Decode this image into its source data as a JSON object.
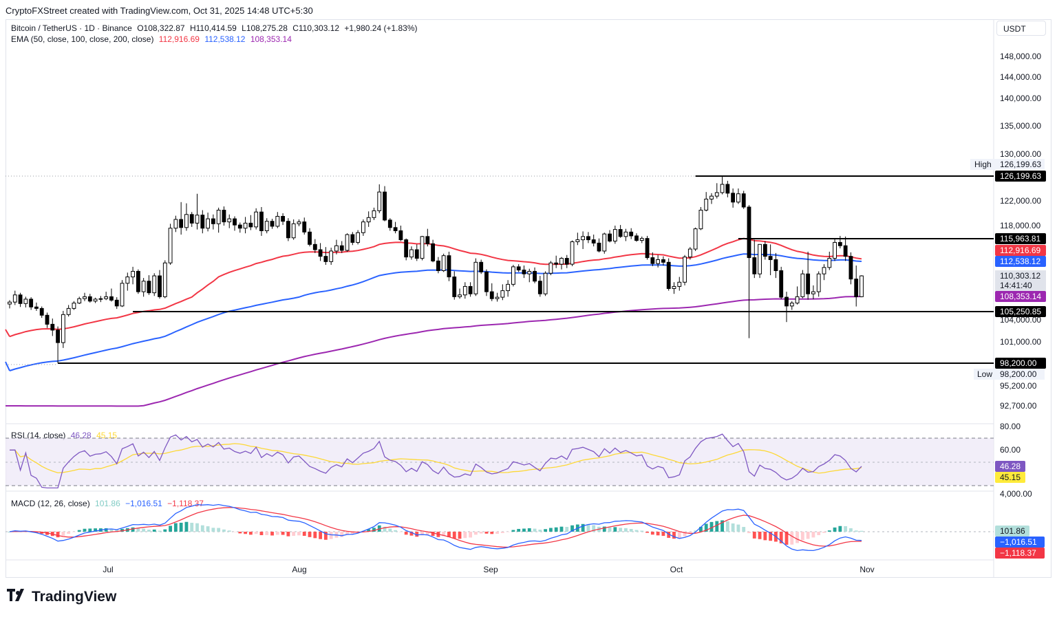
{
  "header": {
    "caption": "CryptoFXStreet created with TradingView.com, Oct 31, 2025 14:48 UTC+5:30"
  },
  "legend": {
    "symbol": "Bitcoin / TetherUS · 1D · Binance",
    "open": "O108,322.87",
    "high": "H110,414.59",
    "low": "L108,275.28",
    "close": "C110,303.12",
    "change": "+1,980.24 (+1.83%)",
    "ema_label": "EMA (50, close, 100, close, 200, close)",
    "ema50": "112,916.69",
    "ema100": "112,538.12",
    "ema200": "108,353.14",
    "rsi_label": "RSI (14, close)",
    "rsi_value": "46.28",
    "rsi_ma": "45.15",
    "macd_label": "MACD (12, 26, close)",
    "macd_hist": "101.86",
    "macd_line": "−1,016.51",
    "macd_signal": "−1,118.37"
  },
  "currency": "USDT",
  "colors": {
    "up": "#ffffff",
    "down": "#000000",
    "ema50": "#f23645",
    "ema100": "#2962ff",
    "ema200": "#9c27b0",
    "rsi": "#7e57c2",
    "rsi_ma": "#fdd835",
    "macd": "#2962ff",
    "signal": "#f23645",
    "hist_up_strong": "#26a69a",
    "hist_up_weak": "#b2dfdb",
    "hist_down_strong": "#ff5252",
    "hist_down_weak": "#ffcdd2"
  },
  "price_axis": {
    "labels": [
      "148,000.00",
      "144,000.00",
      "140,000.00",
      "135,000.00",
      "130,000.00",
      "122,000.00",
      "118,000.00",
      "104,000.00",
      "101,000.00",
      "95,200.00",
      "92,700.00"
    ],
    "high_label": "High",
    "high_value": "126,199.63",
    "low_label": "Low",
    "low_value": "98,200.00",
    "tag_high": "126,199.63",
    "tag_resist": "115,963.81",
    "tag_ema50": "112,916.69",
    "tag_ema100": "112,538.12",
    "tag_close": "110,303.12",
    "tag_countdown": "14:41:40",
    "tag_ema200": "108,353.14",
    "tag_support": "105,250.85",
    "tag_low": "98,200.00"
  },
  "rsi_axis": {
    "labels": [
      "80.00",
      "60.00"
    ],
    "tag_rsi": "46.28",
    "tag_ma": "45.15"
  },
  "macd_axis": {
    "labels": [
      "4,000.00"
    ],
    "tag_hist": "101.86",
    "tag_macd": "−1,016.51",
    "tag_signal": "−1,118.37"
  },
  "time_axis": [
    "Jul",
    "Aug",
    "Sep",
    "Oct",
    "Nov"
  ],
  "footer": {
    "brand": "TradingView"
  },
  "chart_data": {
    "type": "candlestick",
    "symbol": "Bitcoin / TetherUS",
    "interval": "1D",
    "exchange": "Binance",
    "levels": {
      "high": 126199.63,
      "resistance": 115963.81,
      "support": 105250.85,
      "low": 98200.0
    },
    "candles": [
      [
        106800,
        107600,
        105900,
        107200
      ],
      [
        107200,
        108900,
        106600,
        108500
      ],
      [
        108500,
        108700,
        106200,
        106900
      ],
      [
        106900,
        108300,
        106100,
        107800
      ],
      [
        107800,
        108200,
        105600,
        106200
      ],
      [
        106200,
        107100,
        105400,
        105900
      ],
      [
        105900,
        106300,
        104300,
        104700
      ],
      [
        104700,
        105100,
        102900,
        103400
      ],
      [
        103400,
        104200,
        101800,
        102600
      ],
      [
        102600,
        103100,
        98200,
        100900
      ],
      [
        100900,
        105400,
        100200,
        104800
      ],
      [
        104800,
        106600,
        104500,
        105900
      ],
      [
        105900,
        107400,
        105600,
        107000
      ],
      [
        107000,
        108300,
        106800,
        107900
      ],
      [
        107900,
        108700,
        107400,
        108300
      ],
      [
        108300,
        108600,
        107100,
        107400
      ],
      [
        107400,
        108100,
        107000,
        107800
      ],
      [
        107800,
        108400,
        107200,
        107900
      ],
      [
        107900,
        108800,
        107600,
        108300
      ],
      [
        108300,
        109100,
        107300,
        107600
      ],
      [
        107600,
        108200,
        105800,
        106400
      ],
      [
        106400,
        109900,
        106200,
        109600
      ],
      [
        109600,
        110800,
        108900,
        110200
      ],
      [
        110200,
        111700,
        109500,
        111000
      ],
      [
        111000,
        111300,
        108600,
        108800
      ],
      [
        108800,
        110100,
        108300,
        109800
      ],
      [
        109800,
        110400,
        108500,
        108700
      ],
      [
        108700,
        110700,
        108400,
        110300
      ],
      [
        110300,
        111200,
        107900,
        108300
      ],
      [
        108300,
        112700,
        108000,
        112300
      ],
      [
        112300,
        118300,
        112000,
        117600
      ],
      [
        117600,
        119600,
        117000,
        119000
      ],
      [
        119000,
        121800,
        116600,
        117700
      ],
      [
        117700,
        121600,
        117200,
        119800
      ],
      [
        119800,
        120200,
        117800,
        118400
      ],
      [
        118400,
        123200,
        117400,
        119700
      ],
      [
        119700,
        120500,
        116800,
        117600
      ],
      [
        117600,
        120100,
        117100,
        119100
      ],
      [
        119100,
        119800,
        117400,
        118300
      ],
      [
        118300,
        120900,
        116900,
        120500
      ],
      [
        120500,
        121100,
        118000,
        118600
      ],
      [
        118600,
        119800,
        117600,
        119100
      ],
      [
        119100,
        119500,
        117200,
        118100
      ],
      [
        118100,
        118500,
        116900,
        117600
      ],
      [
        117600,
        119400,
        116800,
        118400
      ],
      [
        118400,
        119700,
        117300,
        117800
      ],
      [
        117800,
        120800,
        117400,
        120200
      ],
      [
        120200,
        121000,
        116400,
        117200
      ],
      [
        117200,
        119200,
        116800,
        118700
      ],
      [
        118700,
        119100,
        117500,
        117900
      ],
      [
        117900,
        120200,
        117600,
        119500
      ],
      [
        119500,
        120000,
        118100,
        118700
      ],
      [
        118700,
        119200,
        115600,
        116100
      ],
      [
        116100,
        119000,
        115800,
        118300
      ],
      [
        118300,
        119000,
        117900,
        118600
      ],
      [
        118600,
        119300,
        116600,
        117000
      ],
      [
        117000,
        117600,
        114800,
        115100
      ],
      [
        115100,
        115900,
        113800,
        114300
      ],
      [
        114300,
        115300,
        112600,
        113300
      ],
      [
        113300,
        114700,
        112000,
        112500
      ],
      [
        112500,
        114600,
        112000,
        114100
      ],
      [
        114100,
        115800,
        113600,
        114900
      ],
      [
        114900,
        115600,
        113800,
        114200
      ],
      [
        114200,
        116800,
        114000,
        116600
      ],
      [
        116600,
        117000,
        115000,
        115400
      ],
      [
        115400,
        117300,
        115100,
        116900
      ],
      [
        116900,
        119000,
        116400,
        118600
      ],
      [
        118600,
        120300,
        117800,
        119300
      ],
      [
        119300,
        120900,
        118900,
        120400
      ],
      [
        120400,
        124800,
        120000,
        123500
      ],
      [
        123500,
        124500,
        118700,
        118900
      ],
      [
        118900,
        119200,
        117200,
        117700
      ],
      [
        117700,
        118600,
        116800,
        117200
      ],
      [
        117200,
        118000,
        115600,
        115800
      ],
      [
        115800,
        116000,
        112700,
        113200
      ],
      [
        113200,
        114800,
        112800,
        114300
      ],
      [
        114300,
        115100,
        112600,
        113000
      ],
      [
        113000,
        116400,
        112700,
        116300
      ],
      [
        116300,
        117500,
        114800,
        115200
      ],
      [
        115200,
        115800,
        112400,
        112600
      ],
      [
        112600,
        113200,
        110700,
        111100
      ],
      [
        111100,
        113700,
        110900,
        113400
      ],
      [
        113400,
        114000,
        109800,
        110200
      ],
      [
        110200,
        111000,
        107700,
        108300
      ],
      [
        108300,
        109100,
        107900,
        108500
      ],
      [
        108500,
        109700,
        107900,
        109300
      ],
      [
        109300,
        109700,
        108300,
        108600
      ],
      [
        108600,
        113000,
        108400,
        112400
      ],
      [
        112400,
        112800,
        110600,
        110900
      ],
      [
        110900,
        111300,
        108400,
        108800
      ],
      [
        108800,
        109600,
        107400,
        107900
      ],
      [
        107900,
        108700,
        107300,
        108200
      ],
      [
        108200,
        109500,
        107600,
        108900
      ],
      [
        108900,
        109900,
        108300,
        109500
      ],
      [
        109500,
        112000,
        109300,
        111700
      ],
      [
        111700,
        112100,
        110900,
        111200
      ],
      [
        111200,
        111900,
        110100,
        110600
      ],
      [
        110600,
        111400,
        109700,
        111000
      ],
      [
        111000,
        111600,
        109600,
        109800
      ],
      [
        109800,
        110300,
        108300,
        108600
      ],
      [
        108600,
        111000,
        108400,
        110700
      ],
      [
        110700,
        112600,
        110400,
        112300
      ],
      [
        112300,
        113400,
        111500,
        112100
      ],
      [
        112100,
        113200,
        111300,
        113000
      ],
      [
        113000,
        113500,
        111500,
        112100
      ],
      [
        112100,
        115700,
        111800,
        115500
      ],
      [
        115500,
        116900,
        115000,
        115800
      ],
      [
        115800,
        117100,
        114400,
        116300
      ],
      [
        116300,
        117000,
        115300,
        115800
      ],
      [
        115800,
        116600,
        114800,
        115300
      ],
      [
        115300,
        116000,
        113900,
        114100
      ],
      [
        114100,
        116900,
        113700,
        116700
      ],
      [
        116700,
        117300,
        115400,
        115600
      ],
      [
        115600,
        118000,
        115200,
        117400
      ],
      [
        117400,
        118100,
        116100,
        116300
      ],
      [
        116300,
        117500,
        115600,
        117000
      ],
      [
        117000,
        117600,
        115900,
        116400
      ],
      [
        116400,
        116800,
        115500,
        115700
      ],
      [
        115700,
        116300,
        115300,
        116000
      ],
      [
        116000,
        116400,
        112800,
        113100
      ],
      [
        113100,
        113900,
        111800,
        112200
      ],
      [
        112200,
        113500,
        111600,
        112800
      ],
      [
        112800,
        113300,
        111900,
        112400
      ],
      [
        112400,
        113000,
        108900,
        109100
      ],
      [
        109100,
        109700,
        108600,
        109300
      ],
      [
        109300,
        110200,
        108900,
        109700
      ],
      [
        109700,
        113500,
        109400,
        113200
      ],
      [
        113200,
        114700,
        112800,
        114400
      ],
      [
        114400,
        117700,
        114100,
        117500
      ],
      [
        117500,
        121000,
        117300,
        120500
      ],
      [
        120500,
        123500,
        120300,
        122300
      ],
      [
        122300,
        123300,
        121500,
        122800
      ],
      [
        122800,
        125000,
        122400,
        123400
      ],
      [
        123400,
        126200,
        123100,
        124800
      ],
      [
        124800,
        125400,
        122600,
        123300
      ],
      [
        123300,
        124100,
        120900,
        121800
      ],
      [
        121800,
        124100,
        121500,
        123200
      ],
      [
        123200,
        123700,
        120700,
        121000
      ],
      [
        121000,
        121300,
        101500,
        113100
      ],
      [
        113100,
        115800,
        110100,
        110600
      ],
      [
        110600,
        115000,
        110100,
        115100
      ],
      [
        115100,
        115600,
        112800,
        113300
      ],
      [
        113300,
        115100,
        110400,
        112800
      ],
      [
        112800,
        113800,
        110100,
        111100
      ],
      [
        111100,
        111700,
        107800,
        108200
      ],
      [
        108200,
        108800,
        103700,
        106400
      ],
      [
        106400,
        107400,
        105600,
        107000
      ],
      [
        107000,
        109300,
        106700,
        108300
      ],
      [
        108300,
        111200,
        108000,
        110600
      ],
      [
        110600,
        114000,
        107700,
        108600
      ],
      [
        108600,
        109400,
        107800,
        108800
      ],
      [
        108800,
        111000,
        108300,
        110600
      ],
      [
        110600,
        112100,
        109900,
        111600
      ],
      [
        111600,
        114000,
        111200,
        113000
      ],
      [
        113000,
        116000,
        112600,
        115400
      ],
      [
        115400,
        116400,
        114500,
        114900
      ],
      [
        114900,
        116300,
        112600,
        113300
      ],
      [
        113300,
        113900,
        109500,
        110000
      ],
      [
        110000,
        111900,
        106300,
        108300
      ],
      [
        108300,
        110400,
        108200,
        110300
      ]
    ],
    "ema": {
      "ema50_last": 112916.69,
      "ema100_last": 112538.12,
      "ema200_last": 108353.14
    },
    "rsi": {
      "period": 14,
      "last": 46.28,
      "ma_last": 45.15,
      "band_upper": 70,
      "band_mid": 50,
      "band_lower": 30,
      "axis_labels": [
        80,
        60
      ]
    },
    "macd": {
      "fast": 12,
      "slow": 26,
      "hist_last": 101.86,
      "macd_last": -1016.51,
      "signal_last": -1118.37
    },
    "x_labels": [
      "Jul",
      "Aug",
      "Sep",
      "Oct",
      "Nov"
    ]
  }
}
